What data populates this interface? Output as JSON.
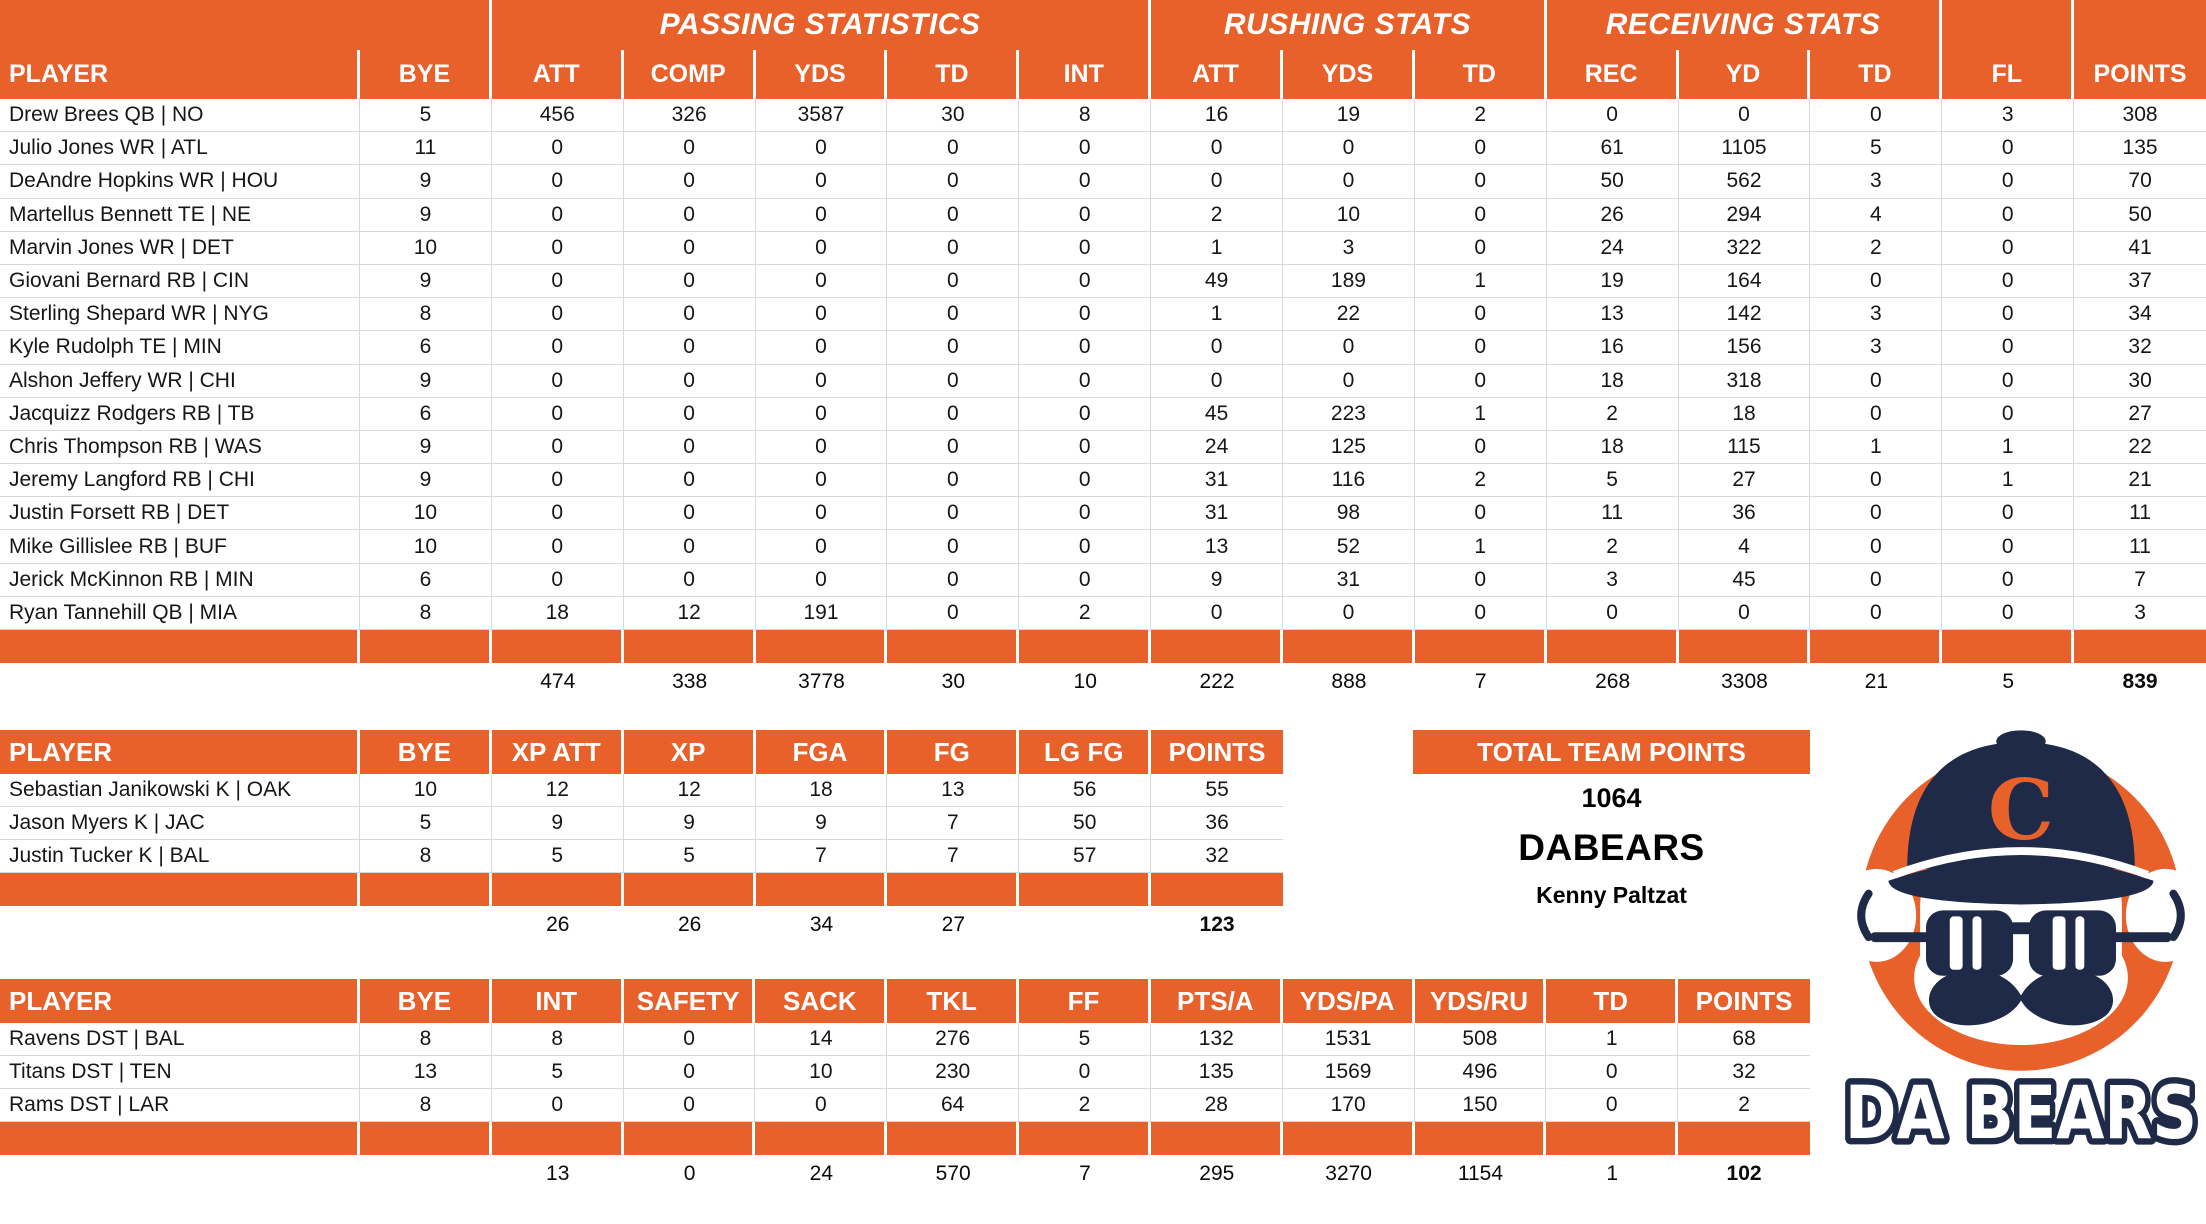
{
  "colors": {
    "orange": "#E8602A",
    "navy": "#1E2A47",
    "gridline": "#D9D9D9"
  },
  "offense_table": {
    "group_headers": [
      {
        "label": "",
        "span": 2
      },
      {
        "label": "PASSING STATISTICS",
        "span": 5
      },
      {
        "label": "RUSHING STATS",
        "span": 3
      },
      {
        "label": "RECEIVING STATS",
        "span": 3
      },
      {
        "label": "",
        "span": 1
      },
      {
        "label": "",
        "span": 1
      }
    ],
    "columns": [
      "PLAYER",
      "BYE",
      "ATT",
      "COMP",
      "YDS",
      "TD",
      "INT",
      "ATT",
      "YDS",
      "TD",
      "REC",
      "YD",
      "TD",
      "FL",
      "POINTS"
    ],
    "rows": [
      [
        "Drew Brees QB | NO",
        "5",
        "456",
        "326",
        "3587",
        "30",
        "8",
        "16",
        "19",
        "2",
        "0",
        "0",
        "0",
        "3",
        "308"
      ],
      [
        "Julio Jones WR | ATL",
        "11",
        "0",
        "0",
        "0",
        "0",
        "0",
        "0",
        "0",
        "0",
        "61",
        "1105",
        "5",
        "0",
        "135"
      ],
      [
        "DeAndre Hopkins WR | HOU",
        "9",
        "0",
        "0",
        "0",
        "0",
        "0",
        "0",
        "0",
        "0",
        "50",
        "562",
        "3",
        "0",
        "70"
      ],
      [
        "Martellus Bennett TE | NE",
        "9",
        "0",
        "0",
        "0",
        "0",
        "0",
        "2",
        "10",
        "0",
        "26",
        "294",
        "4",
        "0",
        "50"
      ],
      [
        "Marvin Jones WR | DET",
        "10",
        "0",
        "0",
        "0",
        "0",
        "0",
        "1",
        "3",
        "0",
        "24",
        "322",
        "2",
        "0",
        "41"
      ],
      [
        "Giovani Bernard RB | CIN",
        "9",
        "0",
        "0",
        "0",
        "0",
        "0",
        "49",
        "189",
        "1",
        "19",
        "164",
        "0",
        "0",
        "37"
      ],
      [
        "Sterling Shepard WR | NYG",
        "8",
        "0",
        "0",
        "0",
        "0",
        "0",
        "1",
        "22",
        "0",
        "13",
        "142",
        "3",
        "0",
        "34"
      ],
      [
        "Kyle Rudolph TE | MIN",
        "6",
        "0",
        "0",
        "0",
        "0",
        "0",
        "0",
        "0",
        "0",
        "16",
        "156",
        "3",
        "0",
        "32"
      ],
      [
        "Alshon Jeffery WR | CHI",
        "9",
        "0",
        "0",
        "0",
        "0",
        "0",
        "0",
        "0",
        "0",
        "18",
        "318",
        "0",
        "0",
        "30"
      ],
      [
        "Jacquizz Rodgers RB | TB",
        "6",
        "0",
        "0",
        "0",
        "0",
        "0",
        "45",
        "223",
        "1",
        "2",
        "18",
        "0",
        "0",
        "27"
      ],
      [
        "Chris Thompson RB | WAS",
        "9",
        "0",
        "0",
        "0",
        "0",
        "0",
        "24",
        "125",
        "0",
        "18",
        "115",
        "1",
        "1",
        "22"
      ],
      [
        "Jeremy Langford RB | CHI",
        "9",
        "0",
        "0",
        "0",
        "0",
        "0",
        "31",
        "116",
        "2",
        "5",
        "27",
        "0",
        "1",
        "21"
      ],
      [
        "Justin Forsett RB | DET",
        "10",
        "0",
        "0",
        "0",
        "0",
        "0",
        "31",
        "98",
        "0",
        "11",
        "36",
        "0",
        "0",
        "11"
      ],
      [
        "Mike Gillislee RB | BUF",
        "10",
        "0",
        "0",
        "0",
        "0",
        "0",
        "13",
        "52",
        "1",
        "2",
        "4",
        "0",
        "0",
        "11"
      ],
      [
        "Jerick McKinnon RB | MIN",
        "6",
        "0",
        "0",
        "0",
        "0",
        "0",
        "9",
        "31",
        "0",
        "3",
        "45",
        "0",
        "0",
        "7"
      ],
      [
        "Ryan Tannehill QB | MIA",
        "8",
        "18",
        "12",
        "191",
        "0",
        "2",
        "0",
        "0",
        "0",
        "0",
        "0",
        "0",
        "0",
        "3"
      ]
    ],
    "totals": [
      "",
      "",
      "474",
      "338",
      "3778",
      "30",
      "10",
      "222",
      "888",
      "7",
      "268",
      "3308",
      "21",
      "5",
      "839"
    ]
  },
  "kicker_table": {
    "columns": [
      "PLAYER",
      "BYE",
      "XP ATT",
      "XP",
      "FGA",
      "FG",
      "LG FG",
      "POINTS"
    ],
    "rows": [
      [
        "Sebastian Janikowski K | OAK",
        "10",
        "12",
        "12",
        "18",
        "13",
        "56",
        "55"
      ],
      [
        "Jason Myers K | JAC",
        "5",
        "9",
        "9",
        "9",
        "7",
        "50",
        "36"
      ],
      [
        "Justin Tucker K | BAL",
        "8",
        "5",
        "5",
        "7",
        "7",
        "57",
        "32"
      ]
    ],
    "totals": [
      "",
      "",
      "26",
      "26",
      "34",
      "27",
      "",
      "123"
    ]
  },
  "defense_table": {
    "columns": [
      "PLAYER",
      "BYE",
      "INT",
      "SAFETY",
      "SACK",
      "TKL",
      "FF",
      "PTS/A",
      "YDS/PA",
      "YDS/RU",
      "TD",
      "POINTS"
    ],
    "rows": [
      [
        "Ravens DST | BAL",
        "8",
        "8",
        "0",
        "14",
        "276",
        "5",
        "132",
        "1531",
        "508",
        "1",
        "68"
      ],
      [
        "Titans DST | TEN",
        "13",
        "5",
        "0",
        "10",
        "230",
        "0",
        "135",
        "1569",
        "496",
        "0",
        "32"
      ],
      [
        "Rams DST | LAR",
        "8",
        "0",
        "0",
        "0",
        "64",
        "2",
        "28",
        "170",
        "150",
        "0",
        "2"
      ]
    ],
    "totals": [
      "",
      "",
      "13",
      "0",
      "24",
      "570",
      "7",
      "295",
      "3270",
      "1154",
      "1",
      "102"
    ]
  },
  "team_summary": {
    "header": "TOTAL TEAM POINTS",
    "total_points": "1064",
    "team_name": "DABEARS",
    "owner": "Kenny Paltzat"
  },
  "logo": {
    "cap_letter": "C",
    "text": "DA BEARS"
  }
}
